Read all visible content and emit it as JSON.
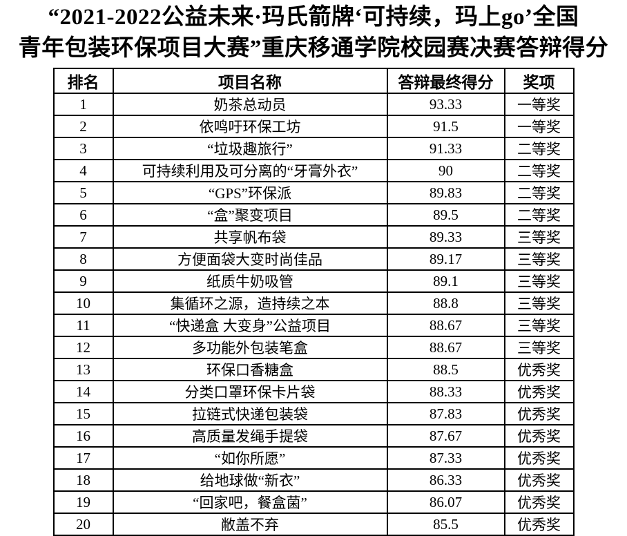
{
  "page": {
    "title_line1": "“2021-2022公益未来·玛氏箭牌‘可持续，玛上go’全国",
    "title_line2": "青年包装环保项目大赛”重庆移通学院校园赛决赛答辩得分"
  },
  "colors": {
    "text": "#000000",
    "border": "#000000",
    "background": "#ffffff"
  },
  "table": {
    "columns": [
      "排名",
      "项目名称",
      "答辩最终得分",
      "奖项"
    ],
    "rows": [
      {
        "rank": "1",
        "project": "奶茶总动员",
        "score": "93.33",
        "award": "一等奖"
      },
      {
        "rank": "2",
        "project": "依鸣吁环保工坊",
        "score": "91.5",
        "award": "一等奖"
      },
      {
        "rank": "3",
        "project": "“垃圾趣旅行”",
        "score": "91.33",
        "award": "二等奖"
      },
      {
        "rank": "4",
        "project": "可持续利用及可分离的“牙膏外衣”",
        "score": "90",
        "award": "二等奖"
      },
      {
        "rank": "5",
        "project": "“GPS”环保派",
        "score": "89.83",
        "award": "二等奖"
      },
      {
        "rank": "6",
        "project": "“盒”聚变项目",
        "score": "89.5",
        "award": "二等奖"
      },
      {
        "rank": "7",
        "project": "共享帆布袋",
        "score": "89.33",
        "award": "三等奖"
      },
      {
        "rank": "8",
        "project": "方便面袋大变时尚佳品",
        "score": "89.17",
        "award": "三等奖"
      },
      {
        "rank": "9",
        "project": "纸质牛奶吸管",
        "score": "89.1",
        "award": "三等奖"
      },
      {
        "rank": "10",
        "project": "集循环之源，造持续之本",
        "score": "88.8",
        "award": "三等奖"
      },
      {
        "rank": "11",
        "project": "“快递盒 大变身”公益项目",
        "score": "88.67",
        "award": "三等奖"
      },
      {
        "rank": "12",
        "project": "多功能外包装笔盒",
        "score": "88.67",
        "award": "三等奖"
      },
      {
        "rank": "13",
        "project": "环保口香糖盒",
        "score": "88.5",
        "award": "优秀奖"
      },
      {
        "rank": "14",
        "project": "分类口罩环保卡片袋",
        "score": "88.33",
        "award": "优秀奖"
      },
      {
        "rank": "15",
        "project": "拉链式快递包装袋",
        "score": "87.83",
        "award": "优秀奖"
      },
      {
        "rank": "16",
        "project": "高质量发绳手提袋",
        "score": "87.67",
        "award": "优秀奖"
      },
      {
        "rank": "17",
        "project": "“如你所愿”",
        "score": "87.33",
        "award": "优秀奖"
      },
      {
        "rank": "18",
        "project": "给地球做“新衣”",
        "score": "86.33",
        "award": "优秀奖"
      },
      {
        "rank": "19",
        "project": "“回家吧，餐盒菌”",
        "score": "86.07",
        "award": "优秀奖"
      },
      {
        "rank": "20",
        "project": "敝盖不弃",
        "score": "85.5",
        "award": "优秀奖"
      }
    ]
  }
}
